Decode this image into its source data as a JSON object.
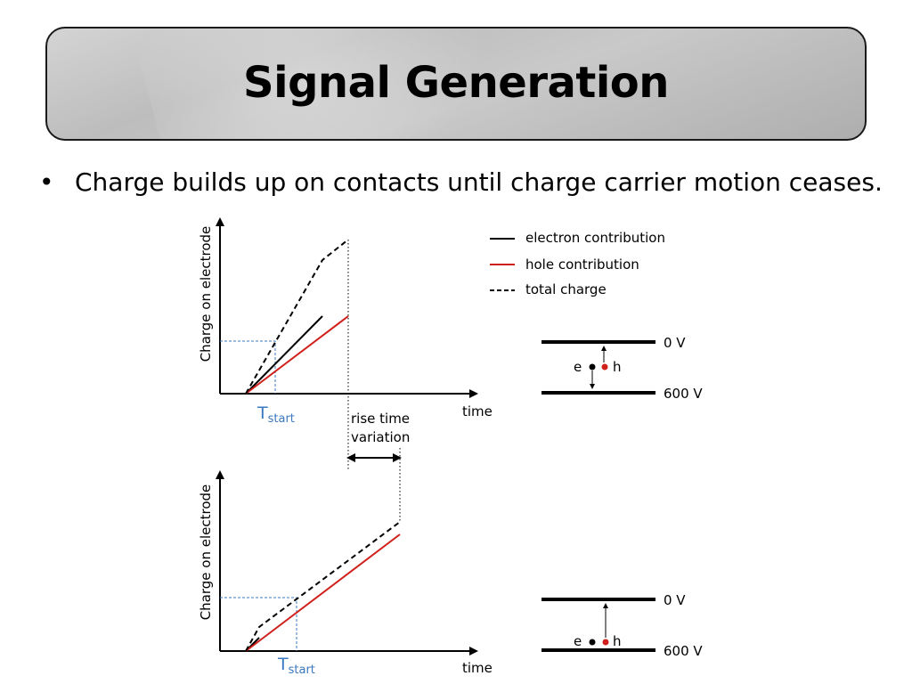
{
  "slide": {
    "title": "Signal Generation",
    "bullet": "Charge builds up on contacts until charge carrier motion ceases."
  },
  "top_plot": {
    "ylabel": "Charge on electrode",
    "xlabel": "time",
    "tstart_main": "T",
    "tstart_sub": "start"
  },
  "bottom_plot": {
    "ylabel": "Charge on electrode",
    "xlabel": "time",
    "tstart_main": "T",
    "tstart_sub": "start"
  },
  "legend": {
    "electron": "electron contribution",
    "hole": "hole contribution",
    "total": "total charge"
  },
  "rise_time": {
    "line1": "rise time",
    "line2": "variation"
  },
  "detector_top": {
    "top_voltage": "0 V",
    "bottom_voltage": "600 V",
    "electron_label": "e",
    "hole_label": "h"
  },
  "detector_bottom": {
    "top_voltage": "0 V",
    "bottom_voltage": "600 V",
    "electron_label": "e",
    "hole_label": "h"
  },
  "colors": {
    "electron": "#000000",
    "hole": "#d0201c",
    "total": "#000000",
    "tstart_guides": "#3a78c0"
  }
}
